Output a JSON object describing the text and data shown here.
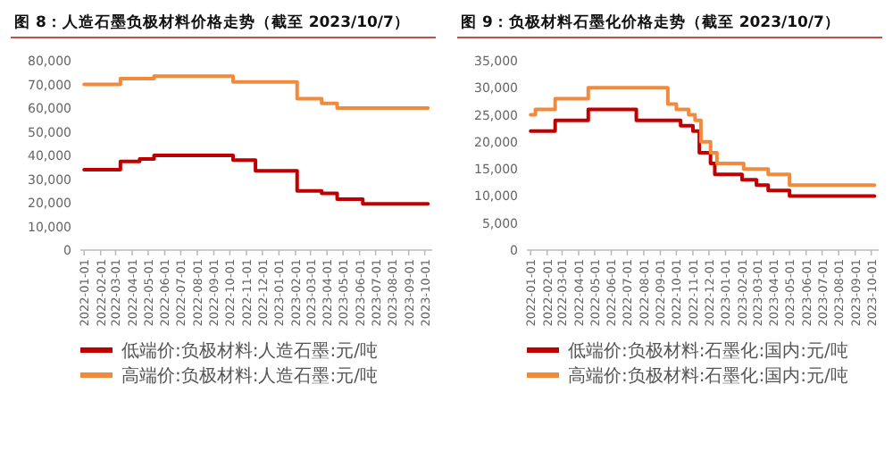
{
  "chart_data": [
    {
      "type": "step",
      "title": "图 8：人造石墨负极材料价格走势（截至 2023/10/7）",
      "xlim": [
        "2021-12-25",
        "2023-10-15"
      ],
      "xticks": [
        "2022-01-01",
        "2022-02-01",
        "2022-03-01",
        "2022-04-01",
        "2022-05-01",
        "2022-06-01",
        "2022-07-01",
        "2022-08-01",
        "2022-09-01",
        "2022-10-01",
        "2022-11-01",
        "2022-12-01",
        "2023-01-01",
        "2023-02-01",
        "2023-03-01",
        "2023-04-01",
        "2023-05-01",
        "2023-06-01",
        "2023-07-01",
        "2023-08-01",
        "2023-09-01",
        "2023-10-01"
      ],
      "ylim": [
        0,
        80000
      ],
      "yticks": [
        0,
        {
          "value": 10000,
          "label": "10,000"
        },
        {
          "value": 20000,
          "label": "20,000"
        },
        {
          "value": 30000,
          "label": "30,000"
        },
        {
          "value": 40000,
          "label": "40,000"
        },
        {
          "value": 50000,
          "label": "50,000"
        },
        {
          "value": 60000,
          "label": "60,000"
        },
        {
          "value": 70000,
          "label": "70,000"
        },
        {
          "value": 80000,
          "label": "80,000"
        }
      ],
      "grid": false,
      "legend": "bottom",
      "series": [
        {
          "name": "低端价:负极材料:人造石墨:元/吨",
          "color": "#c00000",
          "x": [
            "2022-01-01",
            "2022-03-10",
            "2022-04-15",
            "2022-05-12",
            "2022-10-07",
            "2022-11-18",
            "2023-02-04",
            "2023-03-22",
            "2023-04-20",
            "2023-06-07",
            "2023-10-07"
          ],
          "values": [
            34000,
            37500,
            38500,
            40000,
            38000,
            33500,
            25000,
            24000,
            21500,
            19500,
            19500
          ]
        },
        {
          "name": "高端价:负极材料:人造石墨:元/吨",
          "color": "#f08a3c",
          "x": [
            "2022-01-01",
            "2022-03-10",
            "2022-05-12",
            "2022-10-07",
            "2023-02-04",
            "2023-03-22",
            "2023-04-20",
            "2023-10-07"
          ],
          "values": [
            70000,
            72500,
            73500,
            71000,
            64000,
            62000,
            60000,
            60000
          ]
        }
      ]
    },
    {
      "type": "step",
      "title": "图 9：负极材料石墨化价格走势（截至 2023/10/7）",
      "xlim": [
        "2021-12-25",
        "2023-10-15"
      ],
      "xticks": [
        "2022-01-01",
        "2022-02-01",
        "2022-03-01",
        "2022-04-01",
        "2022-05-01",
        "2022-06-01",
        "2022-07-01",
        "2022-08-01",
        "2022-09-01",
        "2022-10-01",
        "2022-11-01",
        "2022-12-01",
        "2023-01-01",
        "2023-02-01",
        "2023-03-01",
        "2023-04-01",
        "2023-05-01",
        "2023-06-01",
        "2023-07-01",
        "2023-08-01",
        "2023-09-01",
        "2023-10-01"
      ],
      "ylim": [
        0,
        35000
      ],
      "yticks": [
        0,
        {
          "value": 5000,
          "label": "5,000"
        },
        {
          "value": 10000,
          "label": "10,000"
        },
        {
          "value": 15000,
          "label": "15,000"
        },
        {
          "value": 20000,
          "label": "20,000"
        },
        {
          "value": 25000,
          "label": "25,000"
        },
        {
          "value": 30000,
          "label": "30,000"
        },
        {
          "value": 35000,
          "label": "35,000"
        }
      ],
      "grid": false,
      "legend": "bottom",
      "series": [
        {
          "name": "低端价:负极材料:石墨化:国内:元/吨",
          "color": "#c00000",
          "x": [
            "2022-01-01",
            "2022-02-16",
            "2022-04-19",
            "2022-07-18",
            "2022-10-09",
            "2022-11-01",
            "2022-11-13",
            "2022-12-04",
            "2022-12-12",
            "2023-02-01",
            "2023-02-28",
            "2023-03-22",
            "2023-05-01",
            "2023-10-07"
          ],
          "values": [
            22000,
            24000,
            26000,
            24000,
            23000,
            22000,
            18000,
            16000,
            14000,
            13000,
            12000,
            11000,
            10000,
            10000
          ]
        },
        {
          "name": "高端价:负极材料:石墨化:国内:元/吨",
          "color": "#f08a3c",
          "x": [
            "2022-01-01",
            "2022-01-10",
            "2022-02-16",
            "2022-04-19",
            "2022-09-15",
            "2022-10-01",
            "2022-10-24",
            "2022-11-05",
            "2022-11-16",
            "2022-12-04",
            "2022-12-16",
            "2023-02-04",
            "2023-03-22",
            "2023-05-01",
            "2023-10-07"
          ],
          "values": [
            25000,
            26000,
            28000,
            30000,
            27000,
            26000,
            25000,
            24000,
            20000,
            18000,
            16000,
            15000,
            14000,
            12000,
            12000
          ]
        }
      ]
    }
  ]
}
